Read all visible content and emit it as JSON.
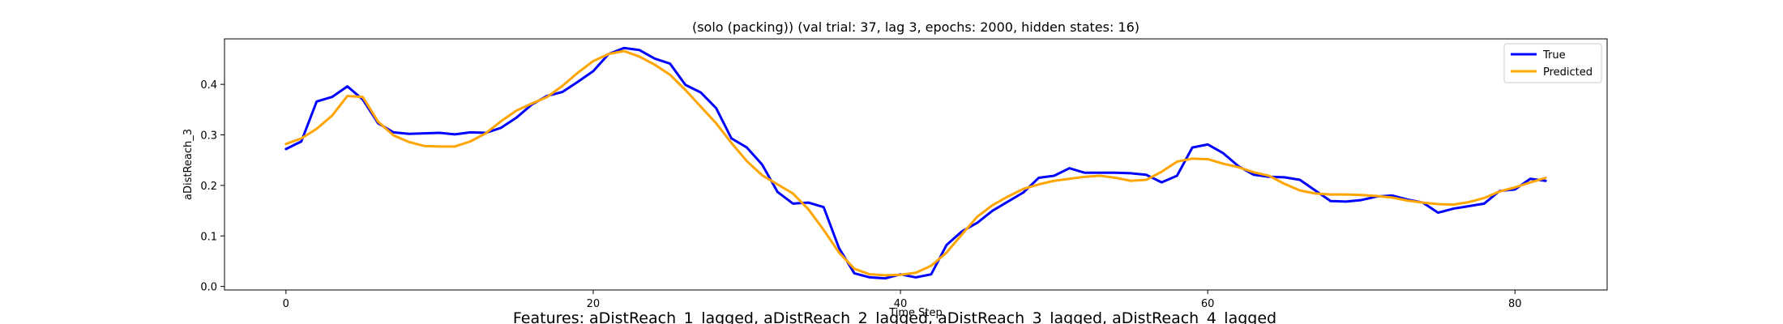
{
  "chart_data": {
    "type": "line",
    "title": "(solo (packing)) (val trial: 37, lag 3, epochs: 2000, hidden states: 16)",
    "xlabel": "Time Step",
    "ylabel": "aDistReach_3",
    "caption": "Features: aDistReach_1_lagged, aDistReach_2_lagged, aDistReach_3_lagged, aDistReach_4_lagged",
    "xlim": [
      -4,
      86
    ],
    "ylim": [
      -0.007,
      0.49
    ],
    "xticks": [
      0,
      20,
      40,
      60,
      80
    ],
    "yticks": [
      0.0,
      0.1,
      0.2,
      0.3,
      0.4
    ],
    "xtick_labels": [
      "0",
      "20",
      "40",
      "60",
      "80"
    ],
    "ytick_labels": [
      "0.0",
      "0.1",
      "0.2",
      "0.3",
      "0.4"
    ],
    "legend_position": "top-right",
    "grid": false,
    "series": [
      {
        "name": "True",
        "color": "#0000ff",
        "values": [
          0.272,
          0.287,
          0.366,
          0.375,
          0.396,
          0.37,
          0.323,
          0.305,
          0.302,
          0.303,
          0.304,
          0.301,
          0.305,
          0.304,
          0.314,
          0.334,
          0.36,
          0.377,
          0.385,
          0.405,
          0.426,
          0.46,
          0.472,
          0.468,
          0.451,
          0.441,
          0.399,
          0.384,
          0.353,
          0.293,
          0.275,
          0.241,
          0.187,
          0.164,
          0.166,
          0.157,
          0.076,
          0.026,
          0.018,
          0.016,
          0.024,
          0.018,
          0.024,
          0.082,
          0.109,
          0.126,
          0.15,
          0.168,
          0.186,
          0.215,
          0.219,
          0.234,
          0.225,
          0.225,
          0.225,
          0.224,
          0.221,
          0.206,
          0.219,
          0.275,
          0.281,
          0.264,
          0.238,
          0.221,
          0.217,
          0.216,
          0.211,
          0.19,
          0.169,
          0.168,
          0.171,
          0.178,
          0.18,
          0.172,
          0.166,
          0.146,
          0.154,
          0.159,
          0.164,
          0.189,
          0.192,
          0.213,
          0.209
        ]
      },
      {
        "name": "Predicted",
        "color": "#ffa500",
        "values": [
          0.282,
          0.293,
          0.312,
          0.338,
          0.377,
          0.375,
          0.326,
          0.299,
          0.286,
          0.278,
          0.277,
          0.277,
          0.287,
          0.303,
          0.327,
          0.348,
          0.362,
          0.375,
          0.397,
          0.423,
          0.446,
          0.46,
          0.466,
          0.455,
          0.439,
          0.419,
          0.389,
          0.356,
          0.323,
          0.284,
          0.248,
          0.22,
          0.202,
          0.184,
          0.153,
          0.112,
          0.067,
          0.035,
          0.024,
          0.022,
          0.023,
          0.027,
          0.041,
          0.067,
          0.103,
          0.138,
          0.161,
          0.178,
          0.193,
          0.202,
          0.209,
          0.213,
          0.217,
          0.219,
          0.215,
          0.209,
          0.211,
          0.227,
          0.247,
          0.253,
          0.252,
          0.243,
          0.236,
          0.226,
          0.219,
          0.203,
          0.19,
          0.184,
          0.182,
          0.182,
          0.181,
          0.179,
          0.176,
          0.17,
          0.166,
          0.163,
          0.162,
          0.167,
          0.175,
          0.188,
          0.196,
          0.206,
          0.215
        ]
      }
    ]
  }
}
